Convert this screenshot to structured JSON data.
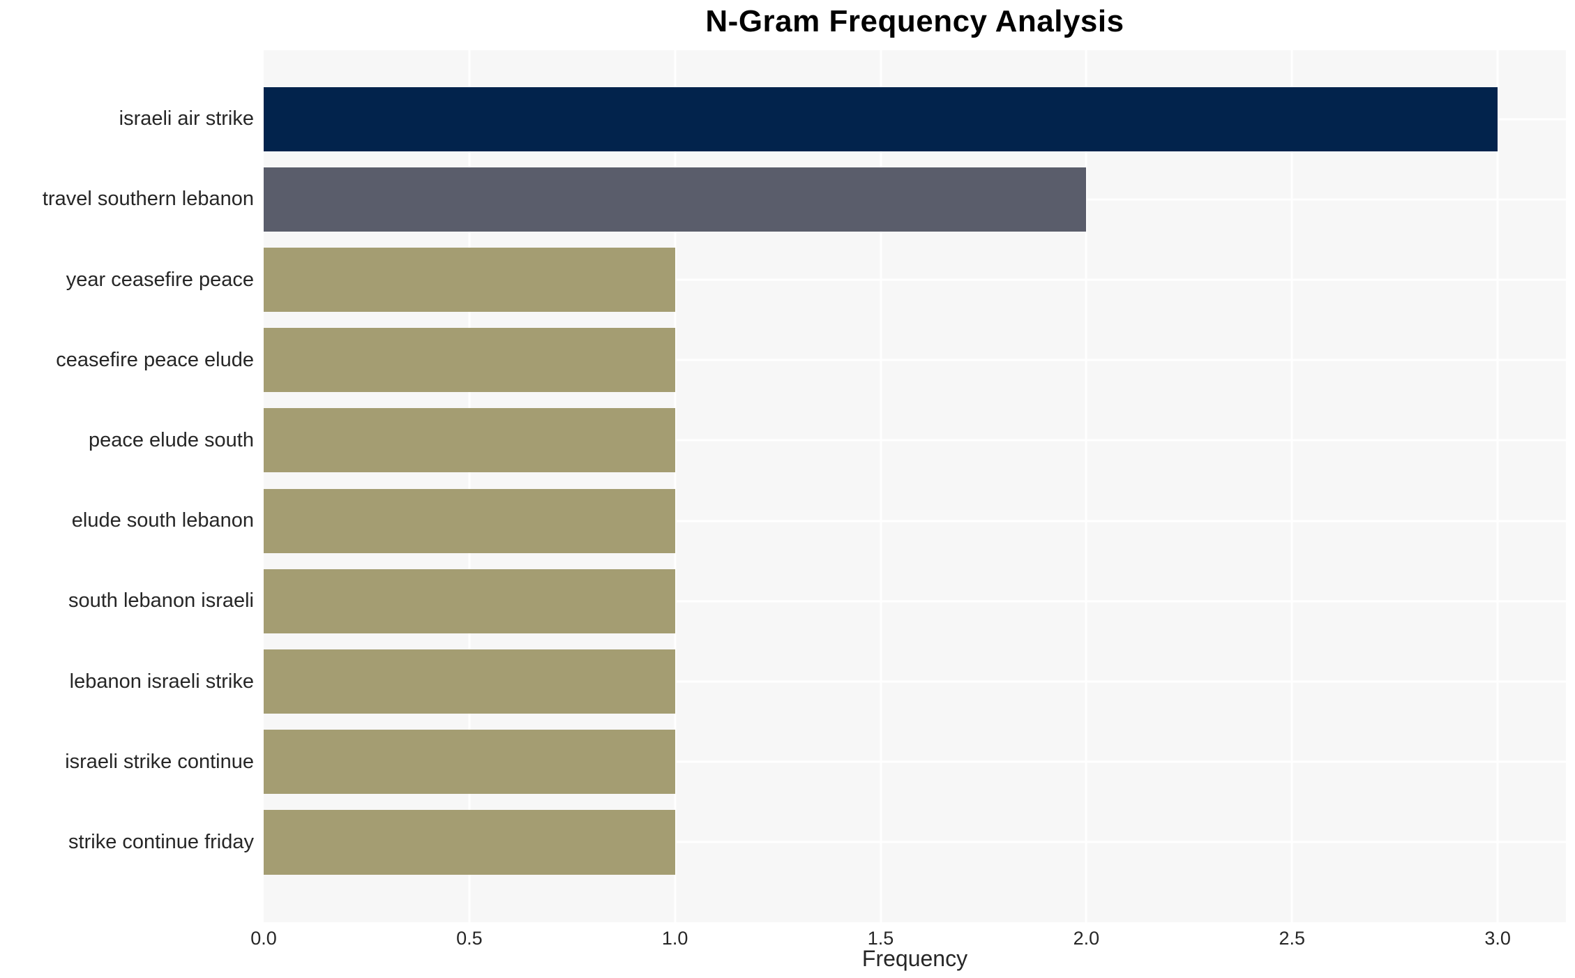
{
  "chart": {
    "title": "N-Gram Frequency Analysis",
    "xlabel": "Frequency"
  },
  "chart_data": {
    "type": "bar",
    "orientation": "horizontal",
    "title": "N-Gram Frequency Analysis",
    "xlabel": "Frequency",
    "ylabel": "",
    "categories": [
      "israeli air strike",
      "travel southern lebanon",
      "year ceasefire peace",
      "ceasefire peace elude",
      "peace elude south",
      "elude south lebanon",
      "south lebanon israeli",
      "lebanon israeli strike",
      "israeli strike continue",
      "strike continue friday"
    ],
    "values": [
      3.0,
      2.0,
      1.0,
      1.0,
      1.0,
      1.0,
      1.0,
      1.0,
      1.0,
      1.0
    ],
    "bar_colors": [
      "#02234c",
      "#5a5d6b",
      "#a49d72",
      "#a49d72",
      "#a49d72",
      "#a49d72",
      "#a49d72",
      "#a49d72",
      "#a49d72",
      "#a49d72"
    ],
    "xticks": [
      0.0,
      0.5,
      1.0,
      1.5,
      2.0,
      2.5,
      3.0
    ],
    "xtick_labels": [
      "0.0",
      "0.5",
      "1.0",
      "1.5",
      "2.0",
      "2.5",
      "3.0"
    ],
    "xlim": [
      0,
      3.166
    ],
    "grid": "white-gridlines-on",
    "legend": "none",
    "plot_background": "#f7f7f7",
    "gridline_color": "#ffffff",
    "text_color": "#262626",
    "title_color": "#000000"
  }
}
